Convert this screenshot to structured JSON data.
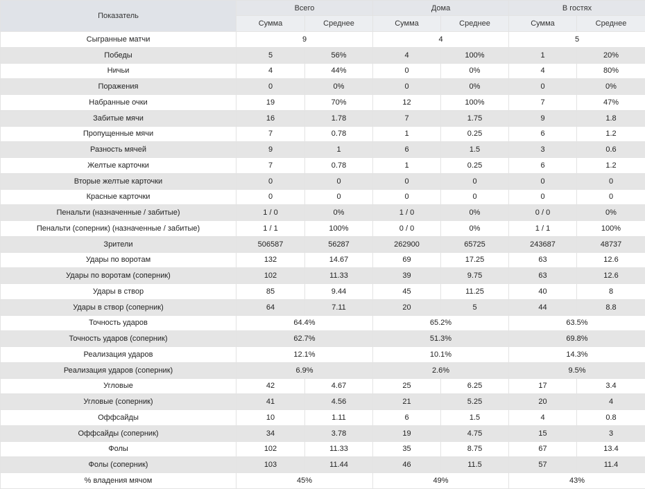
{
  "header": {
    "indicator": "Показатель",
    "groups": [
      "Всего",
      "Дома",
      "В гостях"
    ],
    "sub": [
      "Сумма",
      "Среднее"
    ]
  },
  "rows": [
    {
      "label": "Сыгранные матчи",
      "merged": true,
      "v": [
        "9",
        "4",
        "5"
      ]
    },
    {
      "label": "Победы",
      "v": [
        "5",
        "56%",
        "4",
        "100%",
        "1",
        "20%"
      ]
    },
    {
      "label": "Ничьи",
      "v": [
        "4",
        "44%",
        "0",
        "0%",
        "4",
        "80%"
      ]
    },
    {
      "label": "Поражения",
      "v": [
        "0",
        "0%",
        "0",
        "0%",
        "0",
        "0%"
      ]
    },
    {
      "label": "Набранные очки",
      "v": [
        "19",
        "70%",
        "12",
        "100%",
        "7",
        "47%"
      ]
    },
    {
      "label": "Забитые мячи",
      "v": [
        "16",
        "1.78",
        "7",
        "1.75",
        "9",
        "1.8"
      ]
    },
    {
      "label": "Пропущенные мячи",
      "v": [
        "7",
        "0.78",
        "1",
        "0.25",
        "6",
        "1.2"
      ]
    },
    {
      "label": "Разность мячей",
      "v": [
        "9",
        "1",
        "6",
        "1.5",
        "3",
        "0.6"
      ]
    },
    {
      "label": "Желтые карточки",
      "v": [
        "7",
        "0.78",
        "1",
        "0.25",
        "6",
        "1.2"
      ]
    },
    {
      "label": "Вторые желтые карточки",
      "v": [
        "0",
        "0",
        "0",
        "0",
        "0",
        "0"
      ]
    },
    {
      "label": "Красные карточки",
      "v": [
        "0",
        "0",
        "0",
        "0",
        "0",
        "0"
      ]
    },
    {
      "label": "Пенальти (назначенные / забитые)",
      "v": [
        "1 / 0",
        "0%",
        "1 / 0",
        "0%",
        "0 / 0",
        "0%"
      ]
    },
    {
      "label": "Пенальти (соперник) (назначенные / забитые)",
      "v": [
        "1 / 1",
        "100%",
        "0 / 0",
        "0%",
        "1 / 1",
        "100%"
      ]
    },
    {
      "label": "Зрители",
      "v": [
        "506587",
        "56287",
        "262900",
        "65725",
        "243687",
        "48737"
      ]
    },
    {
      "label": "Удары по воротам",
      "v": [
        "132",
        "14.67",
        "69",
        "17.25",
        "63",
        "12.6"
      ]
    },
    {
      "label": "Удары по воротам (соперник)",
      "v": [
        "102",
        "11.33",
        "39",
        "9.75",
        "63",
        "12.6"
      ]
    },
    {
      "label": "Удары в створ",
      "v": [
        "85",
        "9.44",
        "45",
        "11.25",
        "40",
        "8"
      ]
    },
    {
      "label": "Удары в створ (соперник)",
      "v": [
        "64",
        "7.11",
        "20",
        "5",
        "44",
        "8.8"
      ]
    },
    {
      "label": "Точность ударов",
      "merged": true,
      "v": [
        "64.4%",
        "65.2%",
        "63.5%"
      ]
    },
    {
      "label": "Точность ударов (соперник)",
      "merged": true,
      "v": [
        "62.7%",
        "51.3%",
        "69.8%"
      ]
    },
    {
      "label": "Реализация ударов",
      "merged": true,
      "v": [
        "12.1%",
        "10.1%",
        "14.3%"
      ]
    },
    {
      "label": "Реализация ударов (соперник)",
      "merged": true,
      "v": [
        "6.9%",
        "2.6%",
        "9.5%"
      ]
    },
    {
      "label": "Угловые",
      "v": [
        "42",
        "4.67",
        "25",
        "6.25",
        "17",
        "3.4"
      ]
    },
    {
      "label": "Угловые (соперник)",
      "v": [
        "41",
        "4.56",
        "21",
        "5.25",
        "20",
        "4"
      ]
    },
    {
      "label": "Оффсайды",
      "v": [
        "10",
        "1.11",
        "6",
        "1.5",
        "4",
        "0.8"
      ]
    },
    {
      "label": "Оффсайды (соперник)",
      "v": [
        "34",
        "3.78",
        "19",
        "4.75",
        "15",
        "3"
      ]
    },
    {
      "label": "Фолы",
      "v": [
        "102",
        "11.33",
        "35",
        "8.75",
        "67",
        "13.4"
      ]
    },
    {
      "label": "Фолы (соперник)",
      "v": [
        "103",
        "11.44",
        "46",
        "11.5",
        "57",
        "11.4"
      ]
    },
    {
      "label": "% владения мячом",
      "merged": true,
      "v": [
        "45%",
        "49%",
        "43%"
      ]
    }
  ]
}
